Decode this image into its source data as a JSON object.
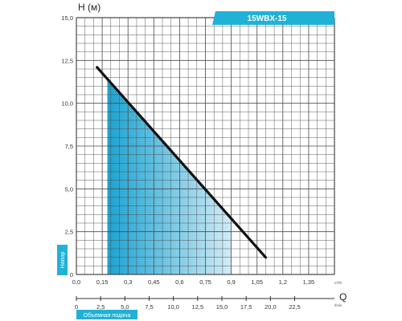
{
  "chart_data": {
    "type": "line",
    "title": "15WBX-15",
    "ylabel": "H (м)",
    "yname": "Напор",
    "xlabel": "Q",
    "xname": "Объемная подача",
    "x_unit_top": "m³/h",
    "x_unit_bottom": "l/min",
    "ylim": [
      0,
      15
    ],
    "xlim_top": [
      0,
      1.5
    ],
    "xlim_bottom": [
      0,
      25
    ],
    "y_ticks": [
      "0",
      "2,5",
      "5,0",
      "7,5",
      "10,0",
      "12,5",
      "15,0"
    ],
    "x_ticks_top": [
      "0,0",
      "0,15",
      "0,3",
      "0,45",
      "0,6",
      "0,75",
      "0,9",
      "1,05",
      "1,2",
      "1,35"
    ],
    "x_ticks_bottom": [
      "0",
      "2,5",
      "5,0",
      "7,5",
      "10,0",
      "12,5",
      "15,0",
      "17,5",
      "20,0",
      "22,5"
    ],
    "grid": true,
    "series": [
      {
        "x": [
          0.12,
          1.1
        ],
        "y": [
          12.1,
          1.0
        ]
      }
    ],
    "recommended_range": [
      0.18,
      0.9
    ],
    "colors": {
      "line": "#111111",
      "fill_dark": "#0f9fd0",
      "fill_light": "#cfeaf6",
      "accent": "#21b1d6",
      "grid": "#444444"
    }
  }
}
